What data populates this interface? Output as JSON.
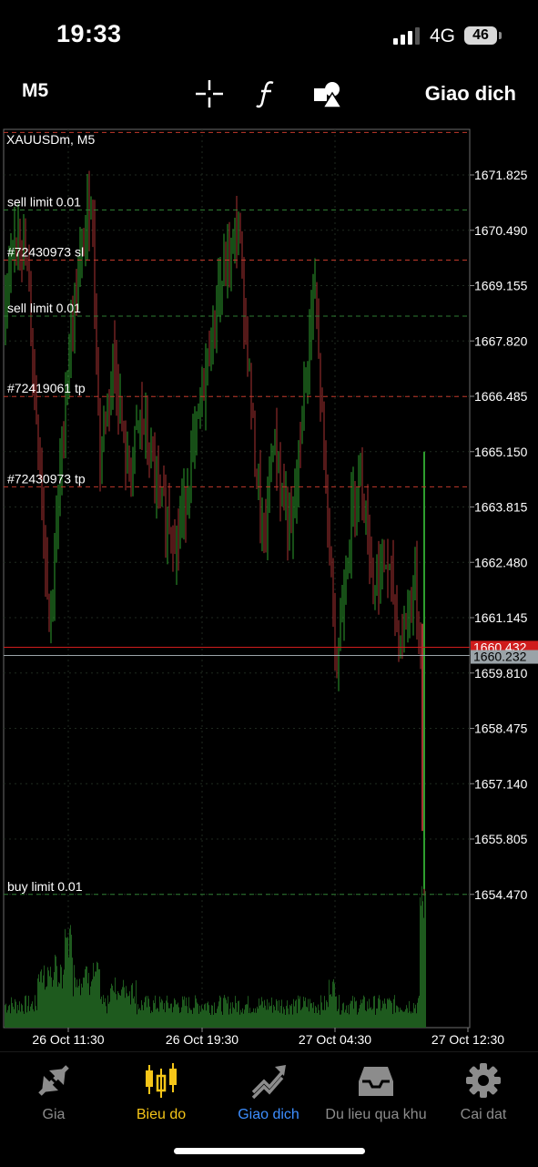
{
  "status_bar": {
    "time": "19:33",
    "network": "4G",
    "battery": "46"
  },
  "toolbar": {
    "timeframe": "M5",
    "trade_label": "Giao dich",
    "icons": [
      "crosshair-icon",
      "function-icon",
      "objects-icon"
    ]
  },
  "chart": {
    "symbol_label": "XAUUSDm, M5",
    "price_ticks": [
      "1671.825",
      "1670.490",
      "1669.155",
      "1667.820",
      "1666.485",
      "1665.150",
      "1663.815",
      "1662.480",
      "1661.145",
      "1659.810",
      "1658.475",
      "1657.140",
      "1655.805",
      "1654.470"
    ],
    "time_ticks": [
      "26 Oct 11:30",
      "26 Oct 19:30",
      "27 Oct 04:30",
      "27 Oct 12:30"
    ],
    "bid_badge": "1660.432",
    "ask_badge": "1660.232",
    "order_lines": [
      {
        "label": "",
        "price": 1672.85,
        "color": "#c0392b"
      },
      {
        "label": "sell limit 0.01",
        "price": 1670.98,
        "color": "#2e7d32"
      },
      {
        "label": "#72430973 sl",
        "price": 1669.77,
        "color": "#c0392b"
      },
      {
        "label": "sell limit 0.01",
        "price": 1668.42,
        "color": "#2e7d32"
      },
      {
        "label": "#72419061 tp",
        "price": 1666.48,
        "color": "#c0392b"
      },
      {
        "label": "#72430973 tp",
        "price": 1664.3,
        "color": "#c0392b"
      },
      {
        "label": "buy limit 0.01",
        "price": 1654.47,
        "color": "#2e7d32"
      }
    ],
    "colors": {
      "up": "#2e9e2e",
      "down": "#a83232",
      "volume": "#1e5a1e",
      "grid": "#1f2a1f",
      "bid": "#d01c1c",
      "ask": "#9aa3a8"
    }
  },
  "tabs": [
    {
      "label": "Gia",
      "icon": "quotes-icon",
      "state": "normal"
    },
    {
      "label": "Bieu do",
      "icon": "chart-icon",
      "state": "yellow"
    },
    {
      "label": "Giao dich",
      "icon": "trade-icon",
      "state": "blue"
    },
    {
      "label": "Du lieu qua khu",
      "icon": "history-icon",
      "state": "normal"
    },
    {
      "label": "Cai dat",
      "icon": "settings-icon",
      "state": "normal"
    }
  ]
}
